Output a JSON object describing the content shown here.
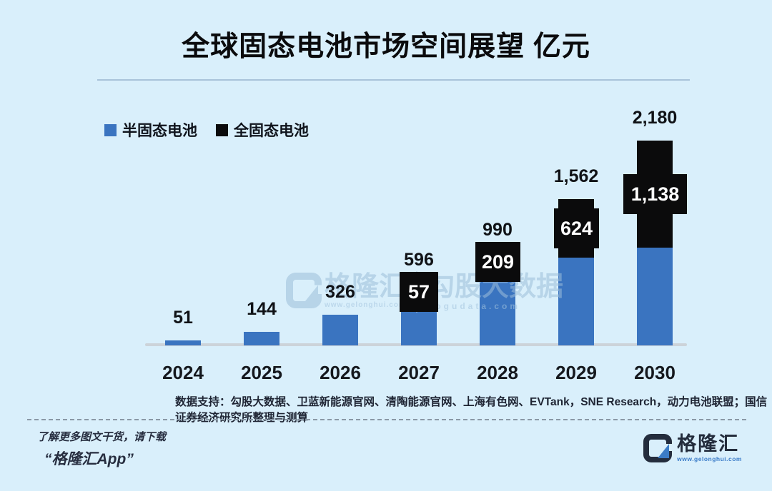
{
  "title": "全球固态电池市场空间展望 亿元",
  "legend": [
    {
      "label": "半固态电池",
      "color": "#3a74c0"
    },
    {
      "label": "全固态电池",
      "color": "#0b0b0c"
    }
  ],
  "chart_data": {
    "type": "bar",
    "stacked": true,
    "title": "全球固态电池市场空间展望",
    "unit": "亿元",
    "categories": [
      "2024",
      "2025",
      "2026",
      "2027",
      "2028",
      "2029",
      "2030"
    ],
    "series": [
      {
        "name": "半固态电池",
        "color": "#3a74c0",
        "values": [
          51,
          144,
          326,
          539,
          781,
          938,
          1042
        ]
      },
      {
        "name": "全固态电池",
        "color": "#0b0b0c",
        "values": [
          0,
          0,
          0,
          57,
          209,
          624,
          1138
        ]
      }
    ],
    "totals": [
      51,
      144,
      326,
      596,
      990,
      1562,
      2180
    ],
    "total_labels": [
      "51",
      "144",
      "326",
      "596",
      "990",
      "1,562",
      "2,180"
    ],
    "segment_labels": [
      "",
      "",
      "",
      "57",
      "209",
      "624",
      "1,138"
    ],
    "ylim": [
      0,
      2300
    ],
    "grid": false,
    "legend_position": "top-left"
  },
  "watermark": {
    "brand": "格隆汇",
    "brand_url": "www.gelonghui.com",
    "data_brand": "勾股大数据",
    "data_url": "gogudata.com"
  },
  "source_note": "数据支持：勾股大数据、卫蓝新能源官网、清陶能源官网、上海有色网、EVTank，SNE Research，动力电池联盟；国信证券经济研究所整理与测算",
  "footer": {
    "line1": "了解更多图文干货，请下载",
    "line2": "“格隆汇App”",
    "logo_text": "格隆汇",
    "logo_url": "www.gelonghui.com"
  }
}
